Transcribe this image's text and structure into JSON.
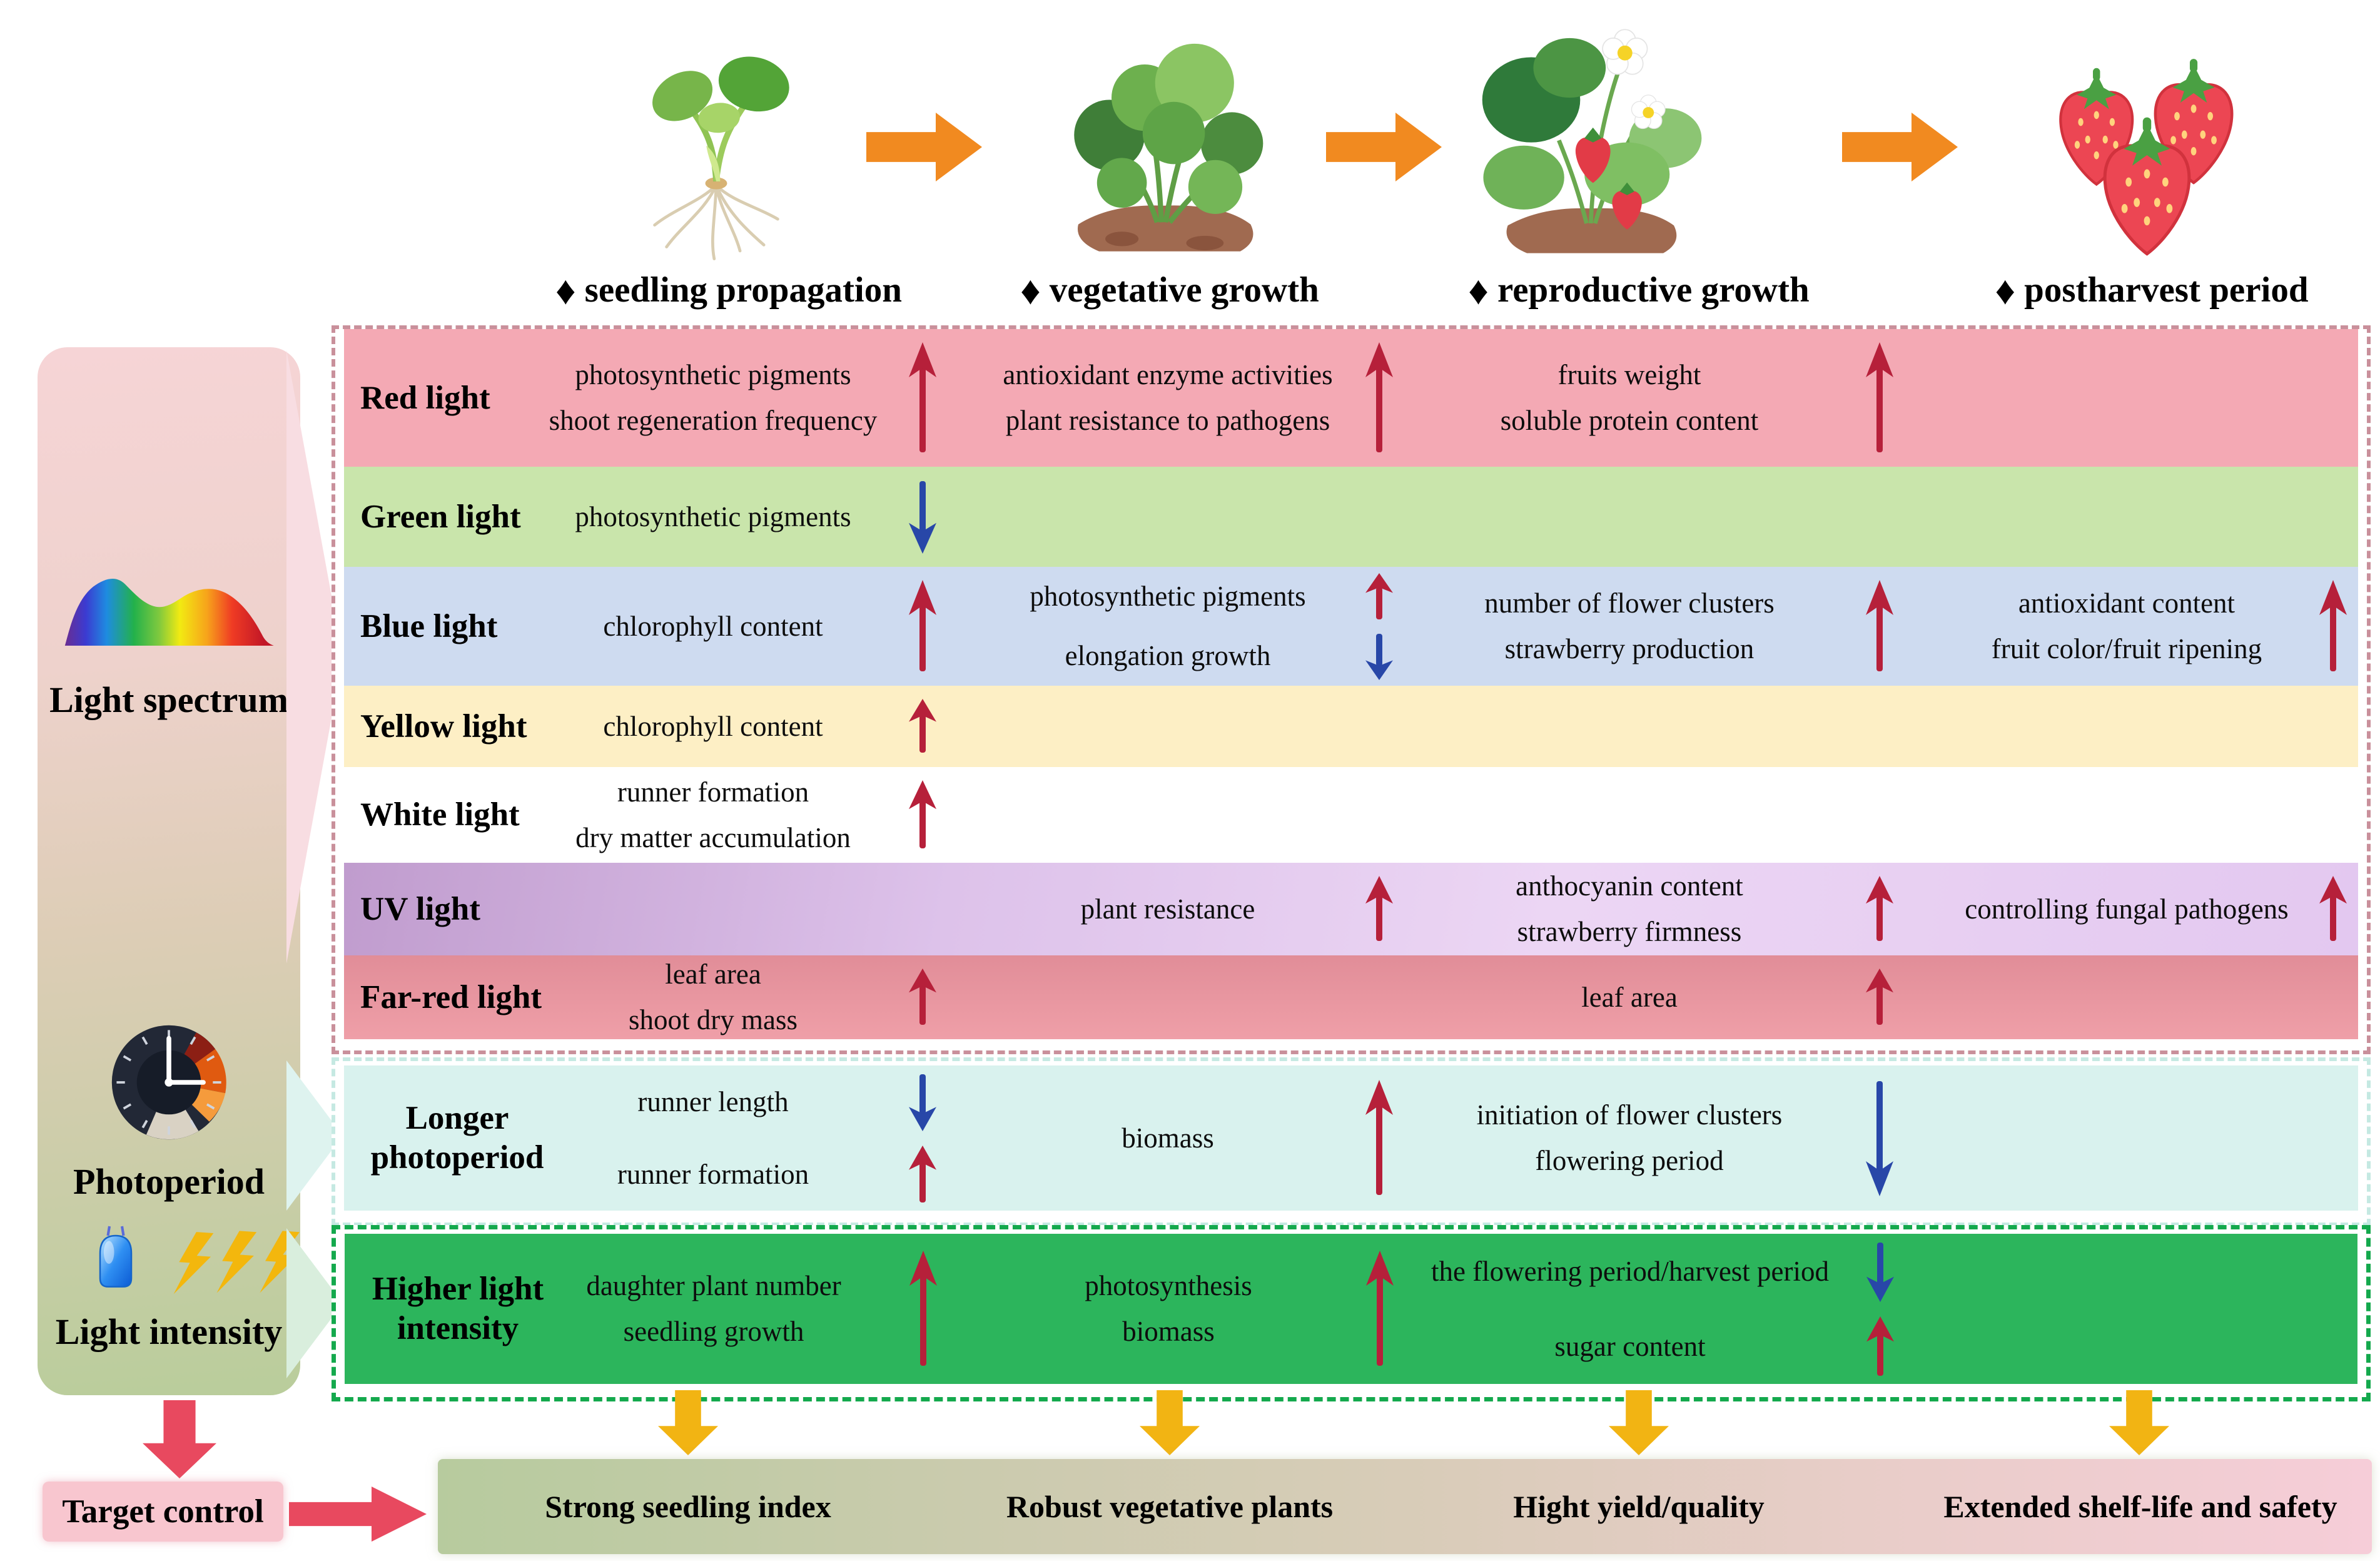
{
  "stages": {
    "diamond": "♦",
    "items": [
      "seedling propagation",
      "vegetative growth",
      "reproductive growth",
      "postharvest period"
    ],
    "arts": [
      "seedling-art",
      "vegetative-plant-art",
      "reproductive-plant-art",
      "strawberries-art"
    ]
  },
  "sidebar": {
    "controls": [
      {
        "label": "Light spectrum",
        "icon": "light-spectrum-icon"
      },
      {
        "label": "Photoperiod",
        "icon": "clock-icon"
      },
      {
        "label": "Light intensity",
        "icon": "led-and-lightning-icon"
      }
    ]
  },
  "spectrum_rows": [
    {
      "label": [
        "Red light"
      ],
      "bg": "#f4a9b4",
      "cells": [
        {
          "col": 1,
          "lines": [
            "photosynthetic pigments",
            "shoot regeneration frequency"
          ],
          "arrows": [
            "up"
          ]
        },
        {
          "col": 2,
          "lines": [
            "antioxidant enzyme activities",
            "plant resistance to pathogens"
          ],
          "arrows": [
            "up"
          ]
        },
        {
          "col": 3,
          "lines": [
            "fruits weight",
            "soluble protein content"
          ],
          "arrows": [
            "up"
          ]
        }
      ]
    },
    {
      "label": [
        "Green light"
      ],
      "bg": "#c9e5ab",
      "cells": [
        {
          "col": 1,
          "lines": [
            "photosynthetic pigments"
          ],
          "arrows": [
            "down"
          ]
        }
      ]
    },
    {
      "label": [
        "Blue light"
      ],
      "bg": "#cedbf0",
      "cells": [
        {
          "col": 1,
          "lines": [
            "chlorophyll content"
          ],
          "arrows": [
            "up"
          ]
        },
        {
          "col": 2,
          "lines": [
            "photosynthetic pigments",
            "elongation growth"
          ],
          "arrows": [
            "up",
            "down"
          ]
        },
        {
          "col": 3,
          "lines": [
            "number of flower clusters",
            "strawberry production"
          ],
          "arrows": [
            "up"
          ]
        },
        {
          "col": 4,
          "lines": [
            "antioxidant content",
            "fruit color/fruit ripening"
          ],
          "arrows": [
            "up"
          ]
        }
      ]
    },
    {
      "label": [
        "Yellow light"
      ],
      "bg": "#fdefc5",
      "cells": [
        {
          "col": 1,
          "lines": [
            "chlorophyll content"
          ],
          "arrows": [
            "up"
          ]
        }
      ]
    },
    {
      "label": [
        "White light"
      ],
      "bg": "#ffffff",
      "cells": [
        {
          "col": 1,
          "lines": [
            "runner formation",
            "dry matter accumulation"
          ],
          "arrows": [
            "up"
          ]
        }
      ]
    },
    {
      "label": [
        "UV light"
      ],
      "bg": "linear-gradient(100deg,#c09cce 0%,#ddc2ea 30%,#ecd6f4 60%,#e3c8f0 100%)",
      "cells": [
        {
          "col": 2,
          "lines": [
            "plant resistance"
          ],
          "arrows": [
            "up"
          ]
        },
        {
          "col": 3,
          "lines": [
            "anthocyanin content",
            "strawberry firmness"
          ],
          "arrows": [
            "up"
          ]
        },
        {
          "col": 4,
          "lines": [
            "controlling fungal pathogens"
          ],
          "arrows": [
            "up"
          ]
        }
      ]
    },
    {
      "label": [
        "Far-red light"
      ],
      "bg": "linear-gradient(to bottom,#e18d98 0%,#ef9fa8 100%)",
      "cells": [
        {
          "col": 1,
          "lines": [
            "leaf area",
            "shoot dry mass"
          ],
          "arrows": [
            "up"
          ]
        },
        {
          "col": 3,
          "lines": [
            "leaf area"
          ],
          "arrows": [
            "up"
          ]
        }
      ]
    }
  ],
  "photoperiod_row": {
    "label": [
      "Longer",
      "photoperiod"
    ],
    "bg": "#d9f2ee",
    "cells": [
      {
        "col": 1,
        "lines": [
          "runner length",
          "runner formation"
        ],
        "arrows": [
          "down",
          "up"
        ]
      },
      {
        "col": 2,
        "lines": [
          "biomass"
        ],
        "arrows": [
          "up"
        ]
      },
      {
        "col": 3,
        "lines": [
          "initiation of flower clusters",
          "flowering period"
        ],
        "arrows": [
          "down"
        ]
      }
    ]
  },
  "intensity_row": {
    "label": [
      "Higher light",
      "intensity"
    ],
    "bg": "#2cb55c",
    "cells": [
      {
        "col": 1,
        "lines": [
          "daughter plant number",
          "seedling growth"
        ],
        "arrows": [
          "up"
        ]
      },
      {
        "col": 2,
        "lines": [
          "photosynthesis",
          "biomass"
        ],
        "arrows": [
          "up"
        ]
      },
      {
        "col": 3,
        "lines": [
          "the flowering period/harvest period",
          "sugar content"
        ],
        "arrows": [
          "down",
          "up"
        ]
      }
    ]
  },
  "bottom": {
    "target_label": "Target control",
    "outcomes": [
      "Strong seedling index",
      "Robust vegetative plants",
      "Hight yield/quality",
      "Extended shelf-life and safety"
    ]
  },
  "colors": {
    "arrow_up": "#b6203a",
    "arrow_down": "#2847a8",
    "stage_arrow_orange": "#f18a20",
    "outcome_arrow_yellow": "#f2b413",
    "target_arrow_red": "#e8495f",
    "target_box_pink": "#f8c6cf",
    "spectrum_border_pink": "#c9909b",
    "photoperiod_border_teal": "#c5e9e2",
    "intensity_border_green": "#14a94d"
  }
}
